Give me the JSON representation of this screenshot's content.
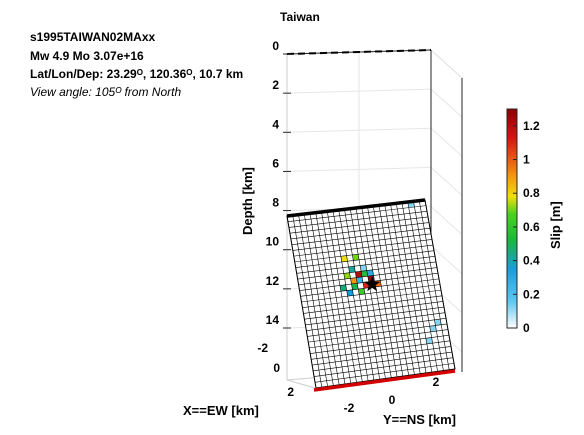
{
  "figure": {
    "title": "Taiwan",
    "event_id": "s1995TAIWAN02MAxx",
    "magnitude_line": "Mw 4.9     Mo 3.07e+16",
    "location_line": "Lat/Lon/Dep: 23.29ᴼ, 120.36ᴼ, 10.7 km",
    "view_angle_line": "View angle: 105ᴼ from North"
  },
  "chart_data": {
    "type": "heatmap",
    "title": "Taiwan",
    "zlabel": "Depth [km]",
    "xlabel": "X==EW [km]",
    "ylabel": "Y==NS [km]",
    "colorbar_label": "Slip [m]",
    "clim": [
      0,
      1.3
    ],
    "colorbar_ticks": [
      0,
      0.2,
      0.4,
      0.6,
      0.8,
      1,
      1.2
    ],
    "depth_ticks": [
      0,
      2,
      4,
      6,
      8,
      10,
      12,
      14
    ],
    "x_ticks": [
      -2,
      0,
      2
    ],
    "y_ticks": [
      -2,
      0,
      2
    ],
    "depth_range": [
      0,
      14.5
    ],
    "fault_grid": {
      "cols": 24,
      "rows": 30,
      "cells": [
        {
          "col": 8,
          "row": 8,
          "slip": 0.78
        },
        {
          "col": 10,
          "row": 8,
          "slip": 0.7
        },
        {
          "col": 9,
          "row": 10,
          "slip": 0.42
        },
        {
          "col": 11,
          "row": 10,
          "slip": 0.12
        },
        {
          "col": 8,
          "row": 11,
          "slip": 0.72
        },
        {
          "col": 10,
          "row": 11,
          "slip": 1.2
        },
        {
          "col": 11,
          "row": 11,
          "slip": 0.55
        },
        {
          "col": 12,
          "row": 11,
          "slip": 0.3
        },
        {
          "col": 9,
          "row": 12,
          "slip": 0.9
        },
        {
          "col": 10,
          "row": 12,
          "slip": 0.25
        },
        {
          "col": 12,
          "row": 12,
          "slip": 1.25
        },
        {
          "col": 7,
          "row": 13,
          "slip": 0.45
        },
        {
          "col": 9,
          "row": 13,
          "slip": 0.5
        },
        {
          "col": 11,
          "row": 13,
          "slip": 1.1
        },
        {
          "col": 13,
          "row": 13,
          "slip": 0.98
        },
        {
          "col": 8,
          "row": 14,
          "slip": 0.35
        },
        {
          "col": 10,
          "row": 14,
          "slip": 0.62
        },
        {
          "col": 21,
          "row": 0,
          "slip": 0.12
        },
        {
          "col": 22,
          "row": 21,
          "slip": 0.12
        },
        {
          "col": 21,
          "row": 22,
          "slip": 0.12
        },
        {
          "col": 20,
          "row": 24,
          "slip": 0.12
        }
      ]
    },
    "hypocenter": {
      "col": 12,
      "row": 13
    }
  }
}
